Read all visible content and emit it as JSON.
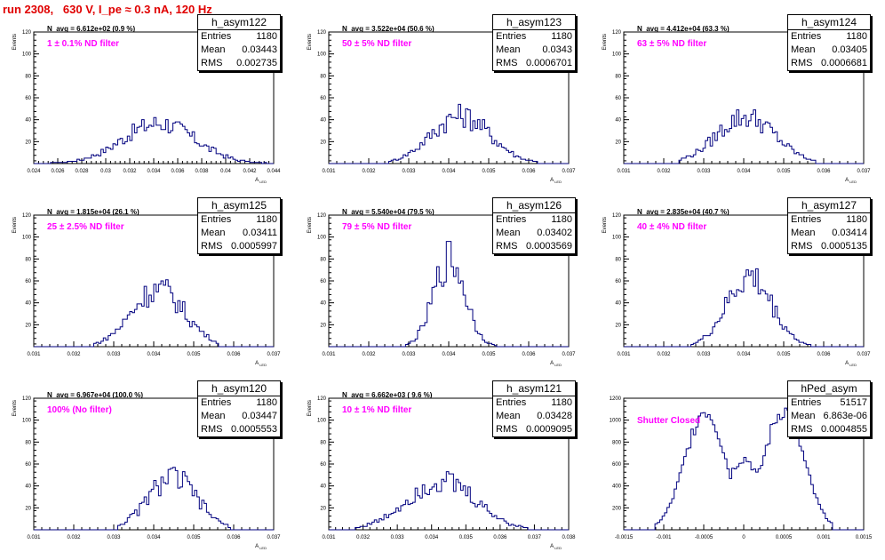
{
  "title": "run 2308,   630 V, I_pe ≈ 0.3 nA, 120 Hz",
  "colors": {
    "title": "#e00000",
    "annotation": "#ff00ff",
    "histogram": "#00007f",
    "axes": "#000000"
  },
  "stats_labels": {
    "entries": "Entries",
    "mean": "Mean",
    "rms": "RMS"
  },
  "chart_data": [
    {
      "type": "histogram",
      "name": "h_asym122",
      "navg": "N_avg = 6.612e+02 (0.9 %)",
      "annotation": "1 ± 0.1% ND filter",
      "stats": {
        "entries": "1180",
        "mean": "0.03443",
        "rms": "0.002735"
      },
      "xlim": [
        0.024,
        0.044
      ],
      "ylim": [
        0,
        120
      ],
      "xticks": [
        "0.024",
        "0.026",
        "0.028",
        "0.03",
        "0.032",
        "0.034",
        "0.036",
        "0.038",
        "0.04",
        "0.042",
        "0.044"
      ],
      "yticks": [
        "20",
        "40",
        "60",
        "80",
        "100",
        "120"
      ],
      "ylabel": "Events",
      "xlabel": "A_LED",
      "bins": {
        "start": 0.0255,
        "end": 0.0435,
        "mean": 0.03443,
        "rms": 0.002735,
        "peak": 38
      }
    },
    {
      "type": "histogram",
      "name": "h_asym123",
      "navg": "N_avg = 3.522e+04 (50.6 %)",
      "annotation": "50 ± 5% ND filter",
      "stats": {
        "entries": "1180",
        "mean": "0.0343",
        "rms": "0.0006701"
      },
      "xlim": [
        0.031,
        0.037
      ],
      "ylim": [
        0,
        120
      ],
      "xticks": [
        "0.031",
        "0.032",
        "0.033",
        "0.034",
        "0.035",
        "0.036",
        "0.037"
      ],
      "yticks": [
        "20",
        "40",
        "60",
        "80",
        "100",
        "120"
      ],
      "ylabel": "Events",
      "xlabel": "A_LED",
      "bins": {
        "start": 0.0325,
        "end": 0.0362,
        "mean": 0.0343,
        "rms": 0.0006701,
        "peak": 45
      }
    },
    {
      "type": "histogram",
      "name": "h_asym124",
      "navg": "N_avg = 4.412e+04 (63.3 %)",
      "annotation": "63 ± 5% ND filter",
      "stats": {
        "entries": "1180",
        "mean": "0.03405",
        "rms": "0.0006681"
      },
      "xlim": [
        0.031,
        0.037
      ],
      "ylim": [
        0,
        120
      ],
      "xticks": [
        "0.031",
        "0.032",
        "0.033",
        "0.034",
        "0.035",
        "0.036",
        "0.037"
      ],
      "yticks": [
        "20",
        "40",
        "60",
        "80",
        "100",
        "120"
      ],
      "ylabel": "Events",
      "xlabel": "A_LED",
      "bins": {
        "start": 0.0324,
        "end": 0.0358,
        "mean": 0.03405,
        "rms": 0.0006681,
        "peak": 44
      }
    },
    {
      "type": "histogram",
      "name": "h_asym125",
      "navg": "N_avg = 1.815e+04 (26.1 %)",
      "annotation": "25 ± 2.5% ND filter",
      "stats": {
        "entries": "1180",
        "mean": "0.03411",
        "rms": "0.0005997"
      },
      "xlim": [
        0.031,
        0.037
      ],
      "ylim": [
        0,
        120
      ],
      "xticks": [
        "0.031",
        "0.032",
        "0.033",
        "0.034",
        "0.035",
        "0.036",
        "0.037"
      ],
      "yticks": [
        "20",
        "40",
        "60",
        "80",
        "100",
        "120"
      ],
      "ylabel": "Events",
      "xlabel": "A_LED",
      "bins": {
        "start": 0.0325,
        "end": 0.0356,
        "mean": 0.03411,
        "rms": 0.0005997,
        "peak": 54
      }
    },
    {
      "type": "histogram",
      "name": "h_asym126",
      "navg": "N_avg = 5.540e+04 (79.5 %)",
      "annotation": "79 ± 5% ND filter",
      "stats": {
        "entries": "1180",
        "mean": "0.03402",
        "rms": "0.0003569"
      },
      "xlim": [
        0.031,
        0.037
      ],
      "ylim": [
        0,
        120
      ],
      "xticks": [
        "0.031",
        "0.032",
        "0.033",
        "0.034",
        "0.035",
        "0.036",
        "0.037"
      ],
      "yticks": [
        "20",
        "40",
        "60",
        "80",
        "100",
        "120"
      ],
      "ylabel": "Events",
      "xlabel": "A_LED",
      "bins": {
        "start": 0.0329,
        "end": 0.0352,
        "mean": 0.03402,
        "rms": 0.0003569,
        "peak": 82
      }
    },
    {
      "type": "histogram",
      "name": "h_asym127",
      "navg": "N_avg = 2.835e+04 (40.7 %)",
      "annotation": "40 ± 4% ND filter",
      "stats": {
        "entries": "1180",
        "mean": "0.03414",
        "rms": "0.0005135"
      },
      "xlim": [
        0.031,
        0.037
      ],
      "ylim": [
        0,
        120
      ],
      "xticks": [
        "0.031",
        "0.032",
        "0.033",
        "0.034",
        "0.035",
        "0.036",
        "0.037"
      ],
      "yticks": [
        "20",
        "40",
        "60",
        "80",
        "100",
        "120"
      ],
      "ylabel": "Events",
      "xlabel": "A_LED",
      "bins": {
        "start": 0.0327,
        "end": 0.0357,
        "mean": 0.03414,
        "rms": 0.0005135,
        "peak": 65
      }
    },
    {
      "type": "histogram",
      "name": "h_asym120",
      "navg": "N_avg = 6.967e+04 (100.0 %)",
      "annotation": "100% (No filter)",
      "stats": {
        "entries": "1180",
        "mean": "0.03447",
        "rms": "0.0005553"
      },
      "xlim": [
        0.031,
        0.037
      ],
      "ylim": [
        0,
        120
      ],
      "xticks": [
        "0.031",
        "0.032",
        "0.033",
        "0.034",
        "0.035",
        "0.036",
        "0.037"
      ],
      "yticks": [
        "20",
        "40",
        "60",
        "80",
        "100",
        "120"
      ],
      "ylabel": "Events",
      "xlabel": "A_LED",
      "bins": {
        "start": 0.0331,
        "end": 0.0359,
        "mean": 0.03447,
        "rms": 0.0005553,
        "peak": 49
      }
    },
    {
      "type": "histogram",
      "name": "h_asym121",
      "navg": "N_avg = 6.662e+03 ( 9.6 %)",
      "annotation": "10 ± 1% ND filter",
      "stats": {
        "entries": "1180",
        "mean": "0.03428",
        "rms": "0.0009095"
      },
      "xlim": [
        0.031,
        0.038
      ],
      "ylim": [
        0,
        120
      ],
      "xticks": [
        "0.031",
        "0.032",
        "0.033",
        "0.034",
        "0.035",
        "0.036",
        "0.037",
        "0.038"
      ],
      "yticks": [
        "20",
        "40",
        "60",
        "80",
        "100",
        "120"
      ],
      "ylabel": "Events",
      "xlabel": "A_LED",
      "bins": {
        "start": 0.0318,
        "end": 0.0368,
        "mean": 0.03428,
        "rms": 0.0009095,
        "peak": 46
      }
    },
    {
      "type": "histogram",
      "name": "hPed_asym",
      "navg": "",
      "annotation": "Shutter Closed",
      "stats": {
        "entries": "51517",
        "mean": "6.863e-06",
        "rms": "0.0004855"
      },
      "xlim": [
        -0.0015,
        0.0015
      ],
      "ylim": [
        0,
        1400
      ],
      "xticks": [
        "-0.0015",
        "-0.001",
        "-0.0005",
        "0",
        "0.0005",
        "0.001",
        "0.0015"
      ],
      "yticks": [
        "200",
        "400",
        "600",
        "800",
        "1000",
        "1200"
      ],
      "ylabel": "",
      "xlabel": "",
      "bins": {
        "start": -0.0011,
        "end": 0.0011,
        "bimodal": true,
        "peaks": [
          -0.00048,
          0.0005
        ],
        "sigma": 0.00025,
        "peak": 1270,
        "dip": 760
      }
    }
  ]
}
